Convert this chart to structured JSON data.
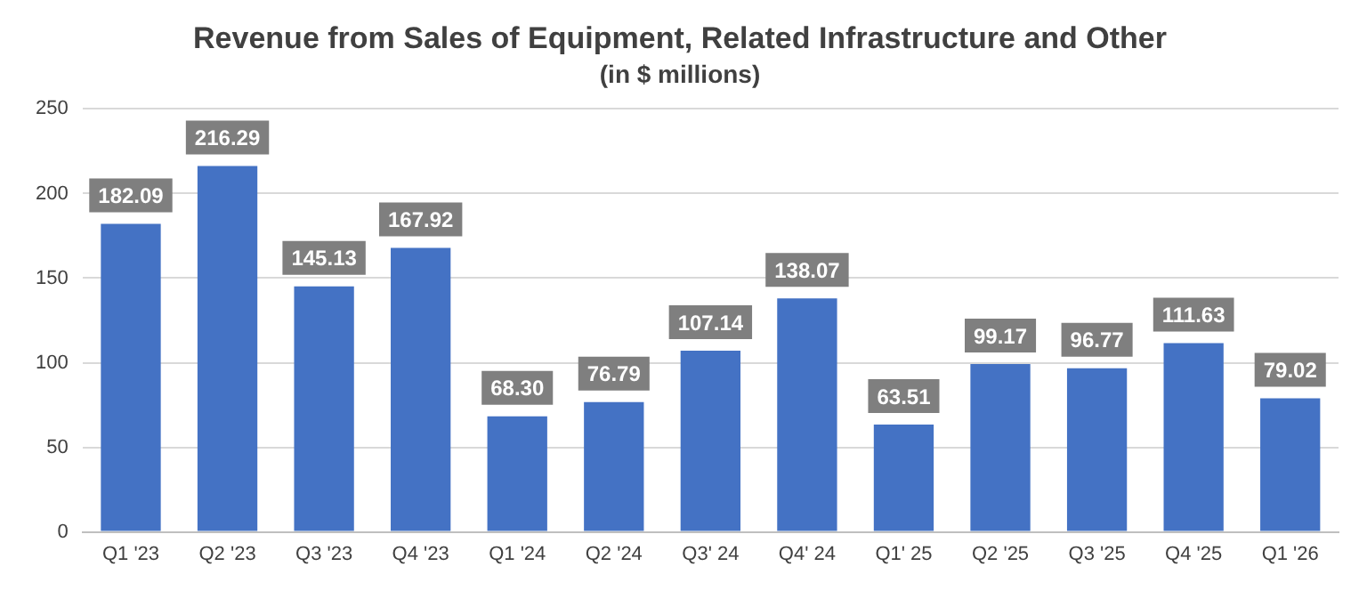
{
  "chart_data": {
    "type": "bar",
    "title": "Revenue from Sales of Equipment, Related Infrastructure and Other",
    "subtitle": "(in $ millions)",
    "categories": [
      "Q1 '23",
      "Q2 '23",
      "Q3 '23",
      "Q4 '23",
      "Q1 '24",
      "Q2 '24",
      "Q3' 24",
      "Q4' 24",
      "Q1' 25",
      "Q2 '25",
      "Q3 '25",
      "Q4 '25",
      "Q1 '26"
    ],
    "values": [
      182.09,
      216.29,
      145.13,
      167.92,
      68.3,
      76.79,
      107.14,
      138.07,
      63.51,
      99.17,
      96.77,
      111.63,
      79.02
    ],
    "value_labels": [
      "182.09",
      "216.29",
      "145.13",
      "167.92",
      "68.30",
      "76.79",
      "107.14",
      "138.07",
      "63.51",
      "99.17",
      "96.77",
      "111.63",
      "79.02"
    ],
    "color": "#4472c4",
    "ylim": [
      0,
      250
    ],
    "yticks": [
      0,
      50,
      100,
      150,
      200,
      250
    ],
    "grid": "y",
    "legend": false
  }
}
